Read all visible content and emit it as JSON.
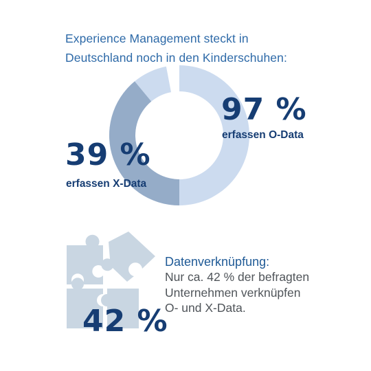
{
  "headline": {
    "line1": "Experience Management steckt in",
    "line2": "Deutschland noch in den Kinderschuhen:"
  },
  "chart_data": {
    "type": "pie",
    "subtype": "donut",
    "series": [
      {
        "name": "O-Data",
        "value": 97,
        "value_label": "97 %",
        "label": "erfassen O-Data",
        "color": "#ccdbef"
      },
      {
        "name": "X-Data",
        "value": 39,
        "value_label": "39 %",
        "label": "erfassen X-Data",
        "color": "#95acc8"
      }
    ]
  },
  "linking": {
    "value": 42,
    "value_label": "42 %",
    "title": "Datenverknüpfung:",
    "text_line1": "Nur ca. 42 % der befragten",
    "text_line2": "Unternehmen verknüpfen",
    "text_line3": "O- und X-Data."
  },
  "colors": {
    "headline": "#2e6aa8",
    "numbers": "#163d73",
    "ring_light": "#ccdbef",
    "ring_dark": "#95acc8",
    "puzzle": "#c9d6e2",
    "body_text": "#4f5459"
  },
  "icons": {
    "puzzle": "puzzle-pieces-icon"
  }
}
